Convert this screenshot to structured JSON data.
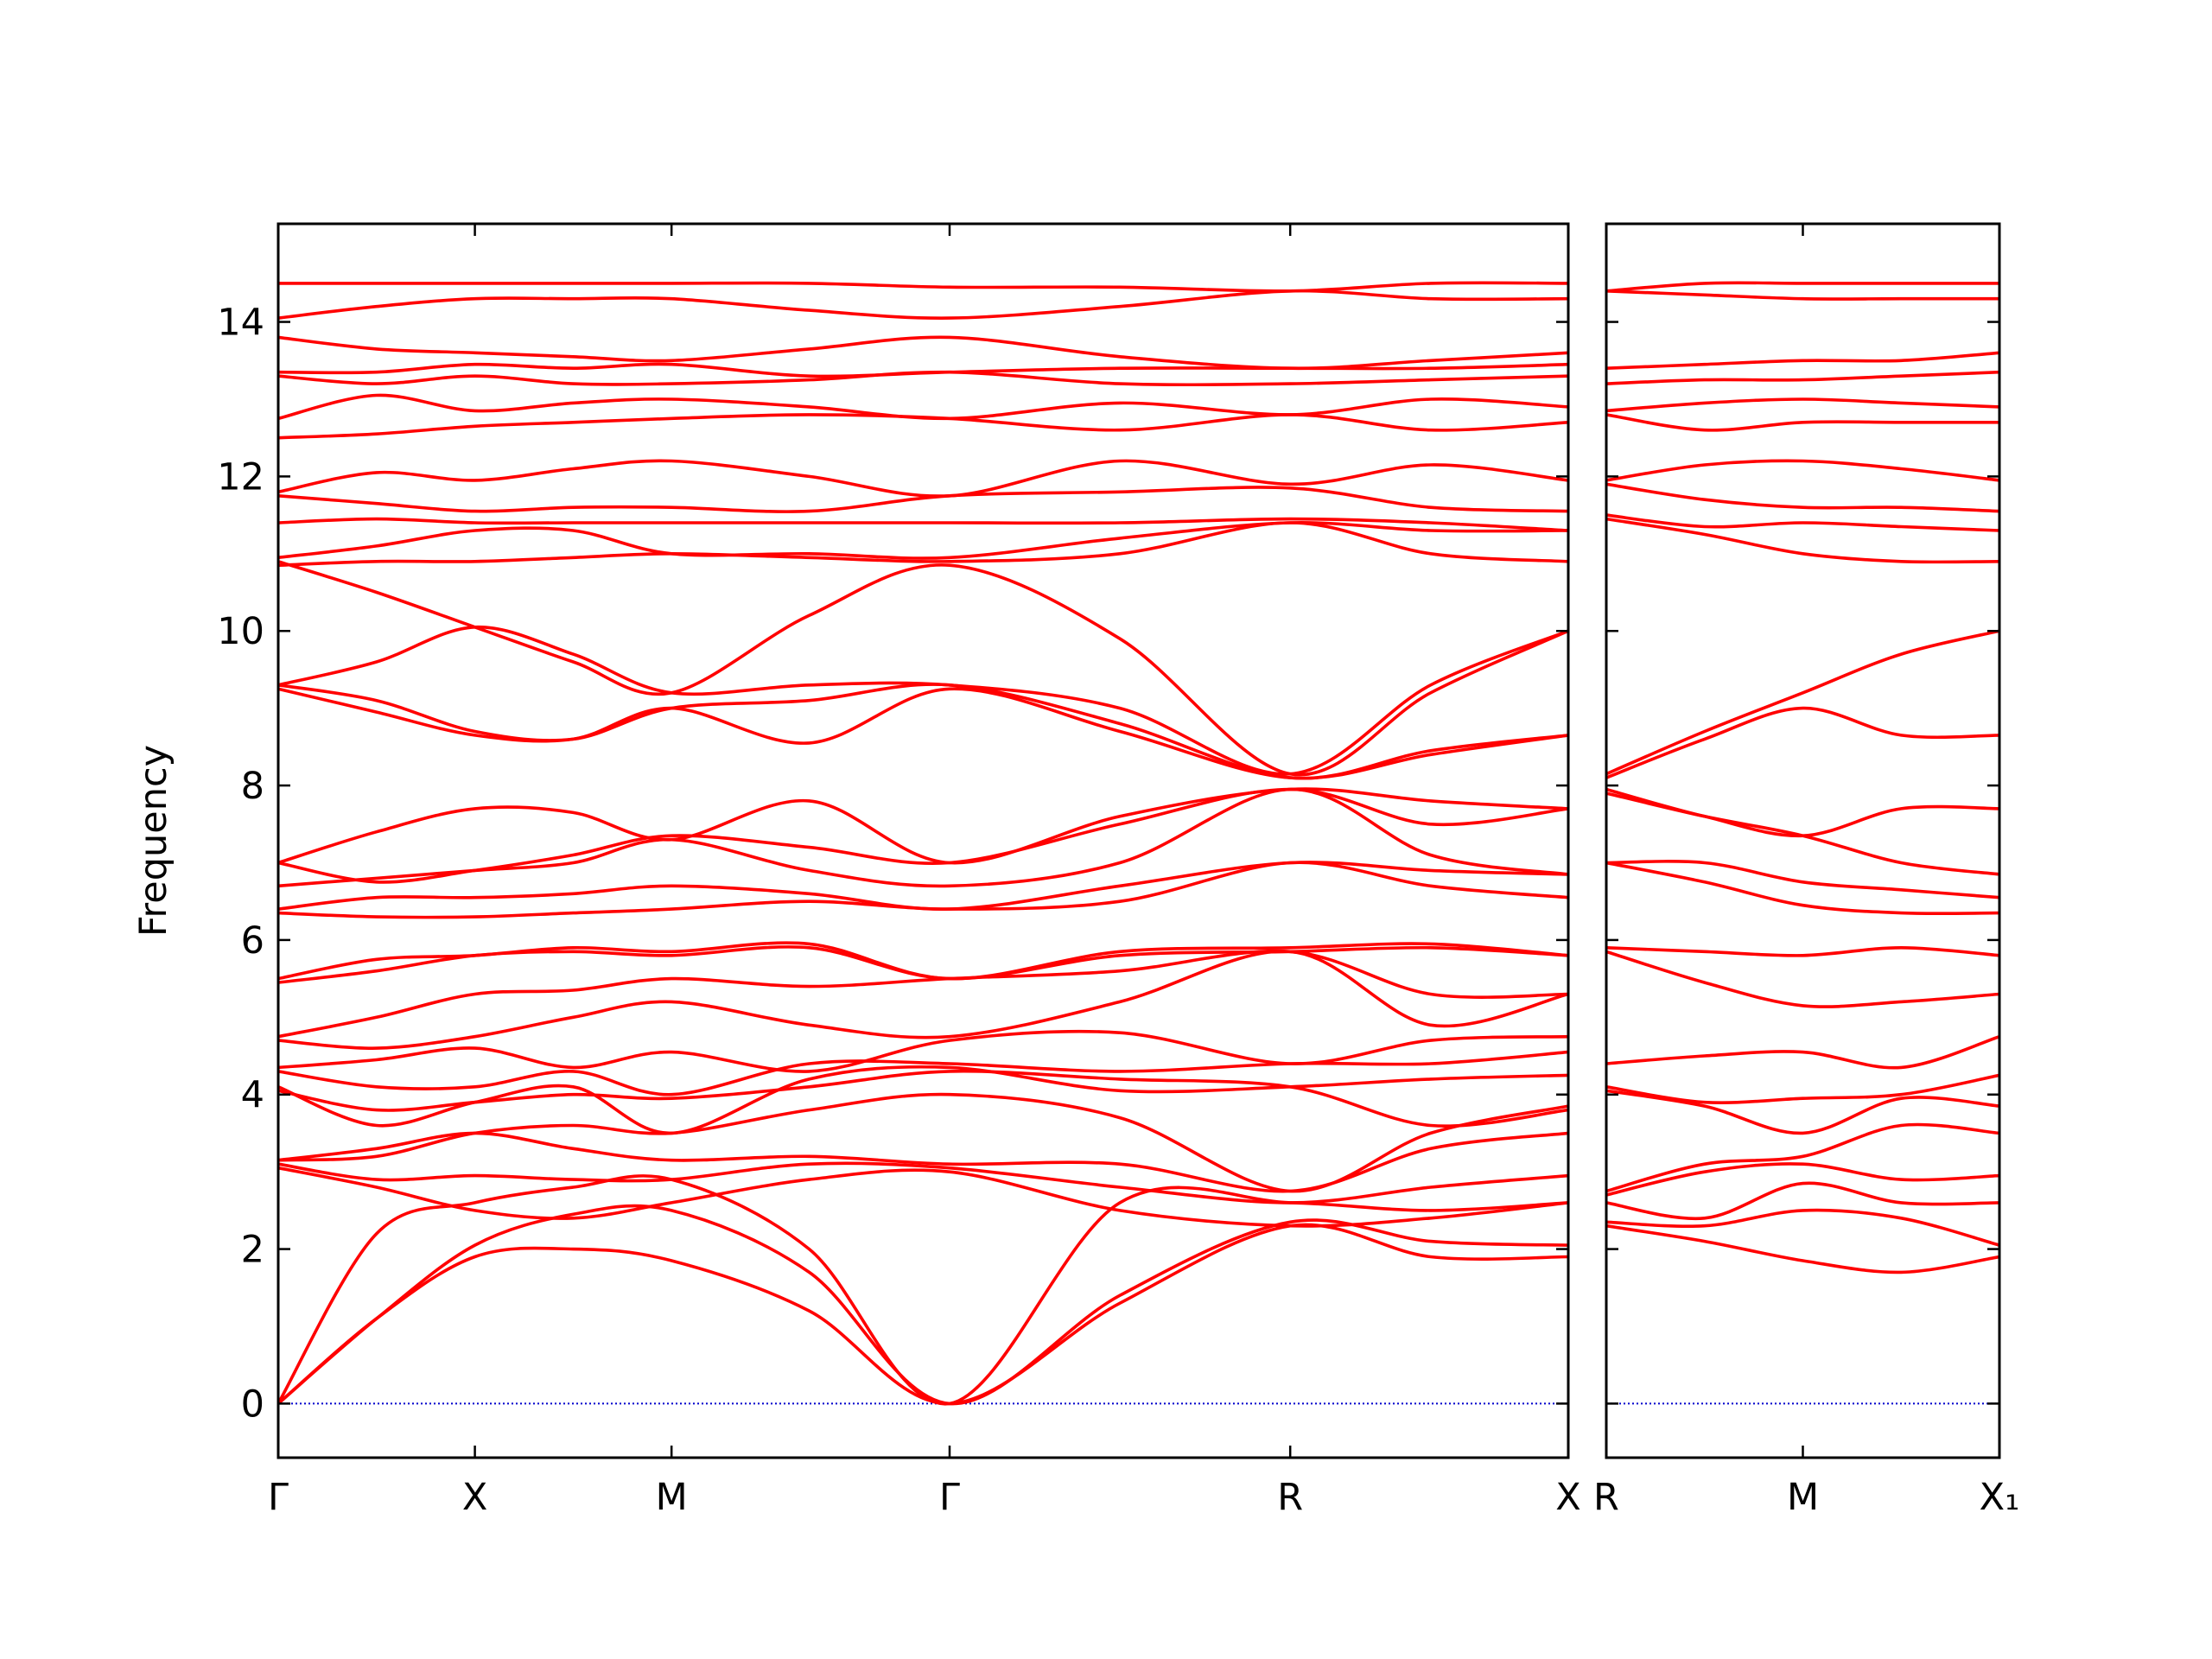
{
  "chart_data": [
    {
      "type": "line",
      "ylabel": "Frequency",
      "color": "#ff0000",
      "ytick_labels": true,
      "hline": {
        "y": 0,
        "color": "#0000cc",
        "style": "dotted"
      },
      "x": [
        0,
        0.25,
        0.5,
        0.75,
        1.0,
        1.35,
        1.707,
        2.14,
        2.573,
        2.93,
        3.28
      ],
      "xlim": [
        0,
        3.28
      ],
      "xticks": [
        {
          "value": 0,
          "label": "Γ"
        },
        {
          "value": 0.5,
          "label": "X"
        },
        {
          "value": 1.0,
          "label": "M"
        },
        {
          "value": 1.707,
          "label": "Γ"
        },
        {
          "value": 2.573,
          "label": "R"
        },
        {
          "value": 3.28,
          "label": "X"
        }
      ],
      "ylim": [
        -0.7,
        15.27
      ],
      "yticks": [
        0,
        2,
        4,
        6,
        8,
        10,
        12,
        14
      ],
      "series": [
        {
          "values": [
            0,
            1.1,
            1.9,
            2.0,
            1.85,
            1.2,
            0,
            1.3,
            2.3,
            1.9,
            1.9
          ]
        },
        {
          "values": [
            0,
            1.1,
            2.05,
            2.45,
            2.5,
            1.7,
            0,
            1.4,
            2.35,
            2.1,
            2.05
          ]
        },
        {
          "values": [
            0,
            2.2,
            2.6,
            2.8,
            2.9,
            2.0,
            0,
            2.6,
            2.6,
            2.5,
            2.6
          ]
        },
        {
          "values": [
            3.05,
            2.8,
            2.5,
            2.4,
            2.6,
            2.9,
            3.0,
            2.5,
            2.3,
            2.4,
            2.6
          ]
        },
        {
          "values": [
            3.1,
            2.9,
            2.95,
            2.9,
            2.9,
            3.1,
            3.05,
            2.8,
            2.6,
            2.8,
            2.95
          ]
        },
        {
          "values": [
            3.15,
            3.3,
            3.5,
            3.3,
            3.15,
            3.2,
            3.1,
            3.1,
            2.75,
            3.3,
            3.5
          ]
        },
        {
          "values": [
            3.15,
            3.2,
            3.5,
            3.6,
            3.5,
            3.8,
            4.0,
            3.7,
            2.75,
            3.5,
            3.85
          ]
        },
        {
          "values": [
            4.05,
            3.8,
            3.9,
            4.0,
            3.95,
            4.1,
            4.3,
            4.2,
            4.1,
            3.6,
            3.8
          ]
        },
        {
          "values": [
            4.1,
            3.6,
            3.9,
            4.1,
            3.5,
            4.2,
            4.35,
            4.05,
            4.1,
            4.2,
            4.25
          ]
        },
        {
          "values": [
            4.3,
            4.1,
            4.1,
            4.3,
            4.0,
            4.4,
            4.4,
            4.3,
            4.4,
            4.4,
            4.55
          ]
        },
        {
          "values": [
            4.35,
            4.45,
            4.6,
            4.35,
            4.55,
            4.3,
            4.7,
            4.8,
            4.4,
            4.7,
            4.75
          ]
        },
        {
          "values": [
            4.7,
            4.6,
            4.75,
            5.0,
            5.2,
            4.9,
            4.75,
            5.2,
            5.85,
            4.9,
            5.3
          ]
        },
        {
          "values": [
            4.75,
            5.0,
            5.3,
            5.35,
            5.5,
            5.4,
            5.5,
            5.6,
            5.85,
            5.3,
            5.3
          ]
        },
        {
          "values": [
            5.45,
            5.6,
            5.8,
            5.85,
            5.8,
            5.9,
            5.5,
            5.8,
            5.85,
            5.9,
            5.8
          ]
        },
        {
          "values": [
            5.5,
            5.75,
            5.8,
            5.9,
            5.85,
            5.95,
            5.5,
            5.85,
            5.9,
            5.95,
            5.8
          ]
        },
        {
          "values": [
            6.35,
            6.3,
            6.3,
            6.35,
            6.4,
            6.5,
            6.4,
            6.5,
            7.0,
            6.7,
            6.55
          ]
        },
        {
          "values": [
            6.4,
            6.55,
            6.55,
            6.6,
            6.7,
            6.6,
            6.4,
            6.7,
            7.0,
            6.9,
            6.85
          ]
        },
        {
          "values": [
            6.7,
            6.8,
            6.9,
            7.0,
            7.3,
            6.9,
            6.7,
            7.0,
            7.95,
            7.1,
            6.85
          ]
        },
        {
          "values": [
            7.0,
            6.75,
            6.9,
            7.1,
            7.35,
            7.2,
            7.0,
            7.5,
            7.95,
            7.5,
            7.7
          ]
        },
        {
          "values": [
            7.0,
            7.4,
            7.7,
            7.65,
            7.3,
            7.8,
            7.0,
            7.6,
            7.95,
            7.8,
            7.7
          ]
        },
        {
          "values": [
            9.25,
            8.95,
            8.65,
            8.6,
            9.0,
            8.55,
            9.25,
            8.7,
            8.1,
            8.4,
            8.65
          ]
        },
        {
          "values": [
            9.3,
            9.1,
            8.7,
            8.6,
            9.0,
            9.1,
            9.3,
            8.8,
            8.1,
            8.45,
            8.65
          ]
        },
        {
          "values": [
            9.3,
            9.6,
            10.05,
            9.7,
            9.2,
            9.3,
            9.3,
            9.0,
            8.15,
            9.3,
            10.0
          ]
        },
        {
          "values": [
            10.9,
            10.5,
            10.05,
            9.6,
            9.2,
            10.2,
            10.85,
            9.9,
            8.15,
            9.2,
            10.0
          ]
        },
        {
          "values": [
            10.85,
            10.9,
            10.9,
            10.95,
            11.0,
            10.95,
            10.9,
            11.0,
            11.4,
            11.0,
            10.9
          ]
        },
        {
          "values": [
            10.95,
            11.1,
            11.3,
            11.3,
            11.0,
            11.0,
            10.95,
            11.2,
            11.4,
            11.3,
            11.3
          ]
        },
        {
          "values": [
            11.4,
            11.45,
            11.4,
            11.4,
            11.4,
            11.4,
            11.4,
            11.4,
            11.45,
            11.4,
            11.3
          ]
        },
        {
          "values": [
            11.75,
            11.65,
            11.55,
            11.6,
            11.6,
            11.55,
            11.75,
            11.8,
            11.85,
            11.6,
            11.55
          ]
        },
        {
          "values": [
            11.8,
            12.05,
            11.95,
            12.1,
            12.2,
            12.0,
            11.75,
            12.2,
            11.9,
            12.15,
            11.95
          ]
        },
        {
          "values": [
            12.5,
            12.55,
            12.65,
            12.7,
            12.75,
            12.8,
            12.75,
            12.6,
            12.8,
            12.6,
            12.7
          ]
        },
        {
          "values": [
            12.75,
            13.05,
            12.85,
            12.95,
            13.0,
            12.9,
            12.75,
            12.95,
            12.8,
            13.0,
            12.9
          ]
        },
        {
          "values": [
            13.3,
            13.2,
            13.3,
            13.2,
            13.2,
            13.25,
            13.35,
            13.2,
            13.2,
            13.25,
            13.3
          ]
        },
        {
          "values": [
            13.35,
            13.35,
            13.45,
            13.4,
            13.45,
            13.3,
            13.35,
            13.4,
            13.4,
            13.4,
            13.45
          ]
        },
        {
          "values": [
            13.8,
            13.65,
            13.6,
            13.55,
            13.5,
            13.65,
            13.8,
            13.55,
            13.4,
            13.5,
            13.6
          ]
        },
        {
          "values": [
            14.05,
            14.2,
            14.3,
            14.3,
            14.3,
            14.15,
            14.05,
            14.2,
            14.4,
            14.3,
            14.3
          ]
        },
        {
          "values": [
            14.5,
            14.5,
            14.5,
            14.5,
            14.5,
            14.5,
            14.45,
            14.45,
            14.4,
            14.5,
            14.5
          ]
        }
      ]
    },
    {
      "type": "line",
      "color": "#ff0000",
      "ytick_labels": false,
      "hline": {
        "y": 0,
        "color": "#0000cc",
        "style": "dotted"
      },
      "x": [
        0,
        0.25,
        0.5,
        0.75,
        1.0
      ],
      "xlim": [
        0,
        1.0
      ],
      "xticks": [
        {
          "value": 0,
          "label": "R"
        },
        {
          "value": 0.5,
          "label": "M"
        },
        {
          "value": 1.0,
          "label": "X₁"
        }
      ],
      "ylim": [
        -0.7,
        15.27
      ],
      "yticks": [
        0,
        2,
        4,
        6,
        8,
        10,
        12,
        14
      ],
      "series": [
        {
          "values": [
            2.3,
            2.1,
            1.85,
            1.7,
            1.9
          ]
        },
        {
          "values": [
            2.35,
            2.3,
            2.5,
            2.4,
            2.05
          ]
        },
        {
          "values": [
            2.6,
            2.4,
            2.85,
            2.6,
            2.6
          ]
        },
        {
          "values": [
            2.7,
            3.0,
            3.1,
            2.9,
            2.95
          ]
        },
        {
          "values": [
            2.75,
            3.1,
            3.2,
            3.6,
            3.5
          ]
        },
        {
          "values": [
            4.05,
            3.85,
            3.5,
            3.95,
            3.85
          ]
        },
        {
          "values": [
            4.1,
            3.9,
            3.95,
            4.0,
            4.25
          ]
        },
        {
          "values": [
            4.4,
            4.5,
            4.55,
            4.35,
            4.75
          ]
        },
        {
          "values": [
            5.85,
            5.45,
            5.15,
            5.2,
            5.3
          ]
        },
        {
          "values": [
            5.9,
            5.85,
            5.8,
            5.9,
            5.8
          ]
        },
        {
          "values": [
            7.0,
            6.75,
            6.45,
            6.35,
            6.35
          ]
        },
        {
          "values": [
            7.0,
            7.0,
            6.75,
            6.65,
            6.55
          ]
        },
        {
          "values": [
            7.9,
            7.6,
            7.35,
            7.0,
            6.85
          ]
        },
        {
          "values": [
            7.95,
            7.6,
            7.35,
            7.7,
            7.7
          ]
        },
        {
          "values": [
            8.1,
            8.6,
            9.0,
            8.65,
            8.65
          ]
        },
        {
          "values": [
            8.15,
            8.7,
            9.2,
            9.7,
            10.0
          ]
        },
        {
          "values": [
            11.45,
            11.25,
            11.0,
            10.9,
            10.9
          ]
        },
        {
          "values": [
            11.5,
            11.35,
            11.4,
            11.35,
            11.3
          ]
        },
        {
          "values": [
            11.9,
            11.7,
            11.6,
            11.6,
            11.55
          ]
        },
        {
          "values": [
            11.95,
            12.15,
            12.2,
            12.1,
            11.95
          ]
        },
        {
          "values": [
            12.8,
            12.6,
            12.7,
            12.7,
            12.7
          ]
        },
        {
          "values": [
            12.85,
            12.95,
            13.0,
            12.95,
            12.9
          ]
        },
        {
          "values": [
            13.2,
            13.25,
            13.25,
            13.3,
            13.35
          ]
        },
        {
          "values": [
            13.4,
            13.45,
            13.5,
            13.5,
            13.6
          ]
        },
        {
          "values": [
            14.4,
            14.35,
            14.3,
            14.3,
            14.3
          ]
        },
        {
          "values": [
            14.4,
            14.5,
            14.5,
            14.5,
            14.5
          ]
        }
      ]
    }
  ]
}
